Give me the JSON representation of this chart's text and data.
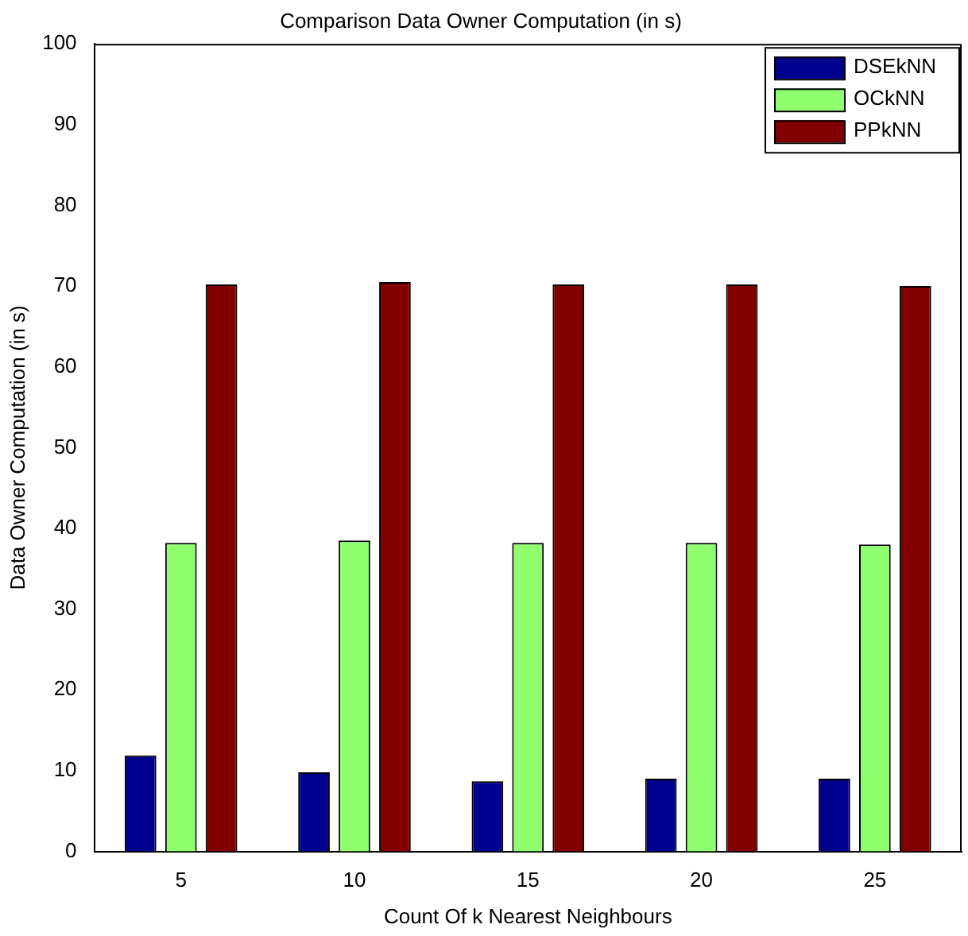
{
  "chart_data": {
    "type": "bar",
    "title": "Comparison Data Owner Computation (in s)",
    "xlabel": "Count Of k Nearest Neighbours",
    "ylabel": "Data Owner Computation (in s)",
    "categories": [
      "5",
      "10",
      "15",
      "20",
      "25"
    ],
    "series": [
      {
        "name": "DSEkNN",
        "color": "#00008f",
        "values": [
          11.9,
          9.8,
          8.7,
          9.0,
          9.0
        ]
      },
      {
        "name": "OCkNN",
        "color": "#8fff6f",
        "values": [
          38.2,
          38.5,
          38.2,
          38.2,
          38.0
        ]
      },
      {
        "name": "PPkNN",
        "color": "#800000",
        "values": [
          70.2,
          70.5,
          70.2,
          70.2,
          70.0
        ]
      }
    ],
    "ylim": [
      0,
      100
    ],
    "yticks": [
      0,
      10,
      20,
      30,
      40,
      50,
      60,
      70,
      80,
      90,
      100
    ],
    "grid": false,
    "legend": "top right"
  }
}
